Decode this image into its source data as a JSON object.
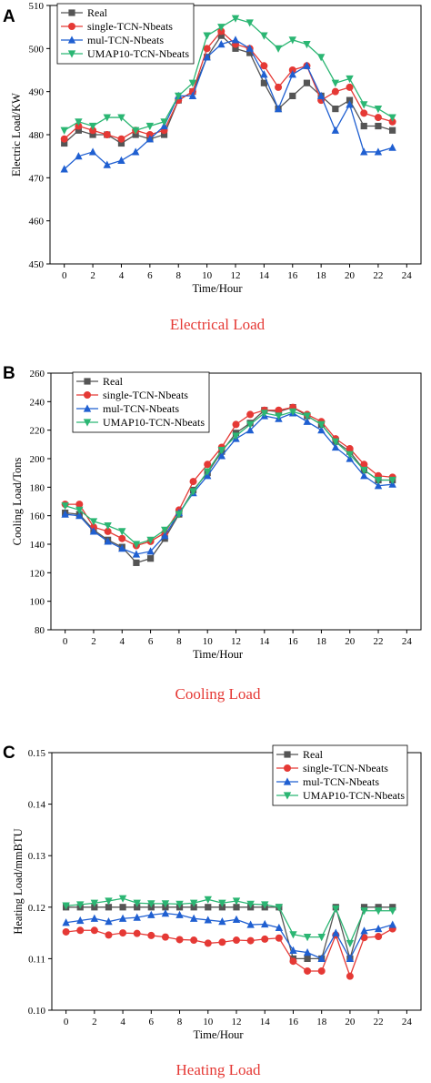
{
  "chart_data": [
    {
      "type": "line",
      "panel_label": "A",
      "caption": "Electrical Load",
      "xlabel": "Time/Hour",
      "ylabel": "Electric Load/KW",
      "xlim": [
        -1,
        25
      ],
      "ylim": [
        450,
        510
      ],
      "xticks": [
        0,
        2,
        4,
        6,
        8,
        10,
        12,
        14,
        16,
        18,
        20,
        22,
        24
      ],
      "yticks": [
        450,
        460,
        470,
        480,
        490,
        500,
        510
      ],
      "legend_position": "top-left",
      "x": [
        0,
        1,
        2,
        3,
        4,
        5,
        6,
        7,
        8,
        9,
        10,
        11,
        12,
        13,
        14,
        15,
        16,
        17,
        18,
        19,
        20,
        21,
        22,
        23
      ],
      "series": [
        {
          "name": "Real",
          "color": "#555555",
          "marker": "square",
          "values": [
            478,
            481,
            480,
            480,
            478,
            480,
            479,
            480,
            488,
            490,
            498,
            503,
            500,
            499,
            492,
            486,
            489,
            492,
            489,
            486,
            488,
            482,
            482,
            481
          ]
        },
        {
          "name": "single-TCN-Nbeats",
          "color": "#e53935",
          "marker": "circle",
          "values": [
            479,
            482,
            481,
            480,
            479,
            481,
            480,
            481,
            488,
            490,
            500,
            504,
            501,
            500,
            496,
            491,
            495,
            496,
            488,
            490,
            491,
            485,
            484,
            483
          ]
        },
        {
          "name": "mul-TCN-Nbeats",
          "color": "#1f5fd1",
          "marker": "triangle-up",
          "values": [
            472,
            475,
            476,
            473,
            474,
            476,
            479,
            482,
            489,
            489,
            498,
            501,
            502,
            500,
            494,
            486,
            494,
            496,
            489,
            481,
            487,
            476,
            476,
            477
          ]
        },
        {
          "name": "UMAP10-TCN-Nbeats",
          "color": "#2bb673",
          "marker": "triangle-down",
          "values": [
            481,
            483,
            482,
            484,
            484,
            481,
            482,
            483,
            489,
            492,
            503,
            505,
            507,
            506,
            503,
            500,
            502,
            501,
            498,
            492,
            493,
            487,
            486,
            484
          ]
        }
      ]
    },
    {
      "type": "line",
      "panel_label": "B",
      "caption": "Cooling Load",
      "xlabel": "Time/Hour",
      "ylabel": "Cooling Load/Tons",
      "xlim": [
        -1,
        25
      ],
      "ylim": [
        80,
        260
      ],
      "xticks": [
        0,
        2,
        4,
        6,
        8,
        10,
        12,
        14,
        16,
        18,
        20,
        22,
        24
      ],
      "yticks": [
        80,
        100,
        120,
        140,
        160,
        180,
        200,
        220,
        240,
        260
      ],
      "legend_position": "top-left",
      "x": [
        0,
        1,
        2,
        3,
        4,
        5,
        6,
        7,
        8,
        9,
        10,
        11,
        12,
        13,
        14,
        15,
        16,
        17,
        18,
        19,
        20,
        21,
        22,
        23
      ],
      "series": [
        {
          "name": "Real",
          "color": "#555555",
          "marker": "square",
          "values": [
            162,
            161,
            150,
            143,
            138,
            127,
            130,
            144,
            161,
            178,
            190,
            205,
            218,
            225,
            234,
            233,
            236,
            230,
            224,
            212,
            205,
            192,
            185,
            185
          ]
        },
        {
          "name": "single-TCN-Nbeats",
          "color": "#e53935",
          "marker": "circle",
          "values": [
            168,
            168,
            152,
            149,
            144,
            139,
            142,
            148,
            164,
            184,
            196,
            208,
            224,
            231,
            234,
            234,
            236,
            231,
            226,
            214,
            207,
            196,
            188,
            187
          ]
        },
        {
          "name": "mul-TCN-Nbeats",
          "color": "#1f5fd1",
          "marker": "triangle-up",
          "values": [
            161,
            160,
            149,
            142,
            137,
            133,
            135,
            146,
            162,
            176,
            188,
            202,
            214,
            220,
            230,
            228,
            232,
            226,
            220,
            208,
            200,
            188,
            181,
            182
          ]
        },
        {
          "name": "UMAP10-TCN-Nbeats",
          "color": "#2bb673",
          "marker": "triangle-down",
          "values": [
            167,
            164,
            156,
            153,
            149,
            140,
            143,
            150,
            161,
            177,
            191,
            206,
            216,
            224,
            232,
            230,
            233,
            230,
            224,
            212,
            203,
            192,
            185,
            185
          ]
        }
      ]
    },
    {
      "type": "line",
      "panel_label": "C",
      "caption": "Heating Load",
      "xlabel": "Time/Hour",
      "ylabel": "Heating Load/mmBTU",
      "xlim": [
        -1,
        25
      ],
      "ylim": [
        0.1,
        0.15
      ],
      "xticks": [
        0,
        2,
        4,
        6,
        8,
        10,
        12,
        14,
        16,
        18,
        20,
        22,
        24
      ],
      "yticks": [
        0.1,
        0.11,
        0.12,
        0.13,
        0.14,
        0.15
      ],
      "ytick_labels": [
        "0.10",
        "0.11",
        "0.12",
        "0.13",
        "0.14",
        "0.15"
      ],
      "legend_position": "top-right",
      "x": [
        0,
        1,
        2,
        3,
        4,
        5,
        6,
        7,
        8,
        9,
        10,
        11,
        12,
        13,
        14,
        15,
        16,
        17,
        18,
        19,
        20,
        21,
        22,
        23
      ],
      "series": [
        {
          "name": "Real",
          "color": "#555555",
          "marker": "square",
          "values": [
            0.12,
            0.12,
            0.12,
            0.12,
            0.12,
            0.12,
            0.12,
            0.12,
            0.12,
            0.12,
            0.12,
            0.12,
            0.12,
            0.12,
            0.12,
            0.12,
            0.11,
            0.11,
            0.11,
            0.12,
            0.11,
            0.12,
            0.12,
            0.12
          ]
        },
        {
          "name": "single-TCN-Nbeats",
          "color": "#e53935",
          "marker": "circle",
          "values": [
            0.1152,
            0.1155,
            0.1155,
            0.1146,
            0.115,
            0.1149,
            0.1145,
            0.1142,
            0.1137,
            0.1136,
            0.113,
            0.1132,
            0.1136,
            0.1135,
            0.1138,
            0.114,
            0.1095,
            0.1076,
            0.1076,
            0.1146,
            0.1066,
            0.1141,
            0.1143,
            0.1158
          ]
        },
        {
          "name": "mul-TCN-Nbeats",
          "color": "#1f5fd1",
          "marker": "triangle-up",
          "values": [
            0.117,
            0.1174,
            0.1178,
            0.1172,
            0.1178,
            0.118,
            0.1185,
            0.1188,
            0.1185,
            0.1178,
            0.1175,
            0.1172,
            0.1176,
            0.1166,
            0.1167,
            0.116,
            0.1116,
            0.1112,
            0.11,
            0.115,
            0.11,
            0.1154,
            0.1158,
            0.1166
          ]
        },
        {
          "name": "UMAP10-TCN-Nbeats",
          "color": "#2bb673",
          "marker": "triangle-down",
          "values": [
            0.1203,
            0.1205,
            0.1208,
            0.1212,
            0.1217,
            0.1208,
            0.1207,
            0.1207,
            0.1206,
            0.1208,
            0.1215,
            0.1208,
            0.1212,
            0.1206,
            0.1205,
            0.12,
            0.1147,
            0.1142,
            0.1142,
            0.1197,
            0.113,
            0.1193,
            0.1193,
            0.1193
          ]
        }
      ]
    }
  ]
}
